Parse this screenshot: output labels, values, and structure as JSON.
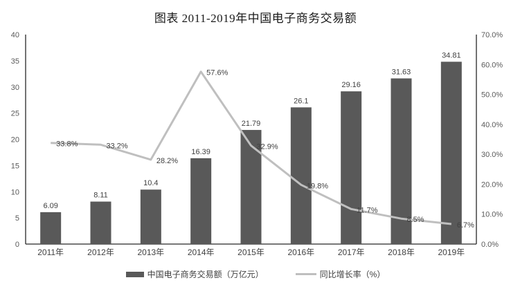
{
  "title": "图表 2011-2019年中国电子商务交易额",
  "chart_data": {
    "type": "bar",
    "subtype": "bar+line-dual-axis",
    "title": "图表 2011-2019年中国电子商务交易额",
    "categories": [
      "2011年",
      "2012年",
      "2013年",
      "2014年",
      "2015年",
      "2016年",
      "2017年",
      "2018年",
      "2019年"
    ],
    "series": [
      {
        "name": "中国电子商务交易额（万亿元）",
        "type": "bar",
        "axis": "left",
        "color": "#595959",
        "values": [
          6.09,
          8.11,
          10.4,
          16.39,
          21.79,
          26.1,
          29.16,
          31.63,
          34.81
        ],
        "labels": [
          "6.09",
          "8.11",
          "10.4",
          "16.39",
          "21.79",
          "26.1",
          "29.16",
          "31.63",
          "34.81"
        ]
      },
      {
        "name": "同比增长率（%）",
        "type": "line",
        "axis": "right",
        "color": "#BFBFBF",
        "values": [
          33.8,
          33.2,
          28.2,
          57.6,
          32.9,
          19.8,
          11.7,
          8.5,
          6.7
        ],
        "labels": [
          "33.8%",
          "33.2%",
          "28.2%",
          "57.6%",
          "32.9%",
          "19.8%",
          "11.7%",
          "8.5%",
          "6.7%"
        ]
      }
    ],
    "left_axis": {
      "min": 0,
      "max": 40,
      "step": 5,
      "ticks": [
        "0",
        "5",
        "10",
        "15",
        "20",
        "25",
        "30",
        "35",
        "40"
      ]
    },
    "right_axis": {
      "min": 0,
      "max": 70,
      "step": 10,
      "ticks": [
        "0.0%",
        "10.0%",
        "20.0%",
        "30.0%",
        "40.0%",
        "50.0%",
        "60.0%",
        "70.0%"
      ]
    },
    "grid": false,
    "legend_position": "bottom"
  },
  "legend": {
    "bar_label": "中国电子商务交易额（万亿元）",
    "line_label": "同比增长率（%）"
  },
  "colors": {
    "bar": "#595959",
    "line": "#BFBFBF",
    "axis": "#262626",
    "tick_text": "#595959",
    "label_text": "#404040",
    "background": "#FFFFFF"
  }
}
